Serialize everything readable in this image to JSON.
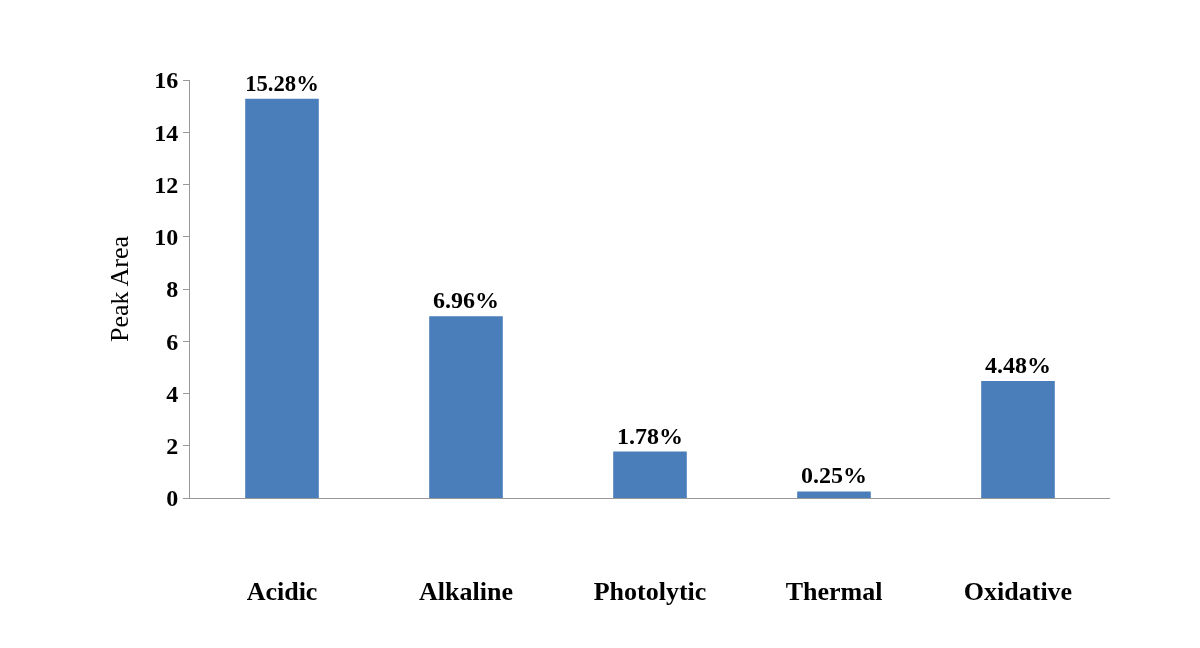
{
  "chart_data": {
    "type": "bar",
    "ylabel": "Peak Area",
    "categories": [
      "Acidic",
      "Alkaline",
      "Photolytic",
      "Thermal",
      "Oxidative"
    ],
    "values": [
      15.28,
      6.96,
      1.78,
      0.25,
      4.48
    ],
    "value_labels": [
      "15.28%",
      "6.96%",
      "1.78%",
      "0.25%",
      "4.48%"
    ],
    "color": "#4a7ebb",
    "ylim": [
      0,
      16
    ],
    "yticks": [
      0,
      2,
      4,
      6,
      8,
      10,
      12,
      14,
      16
    ],
    "grid": false
  }
}
